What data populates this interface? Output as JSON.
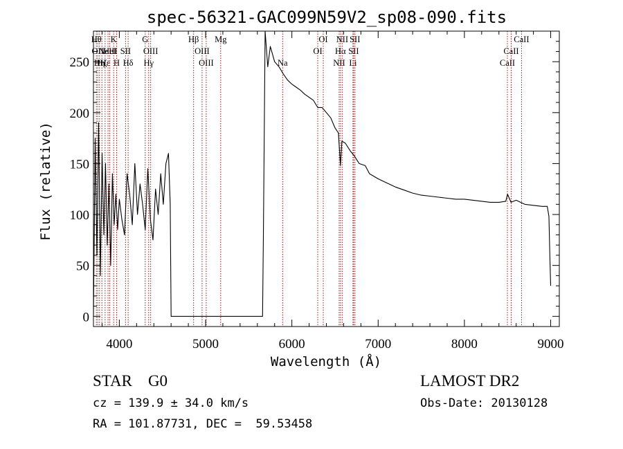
{
  "chart_data": {
    "type": "line",
    "title": "spec-56321-GAC099N59V2_sp08-090.fits",
    "xlabel": "Wavelength (Å)",
    "ylabel": "Flux (relative)",
    "xlim": [
      3700,
      9100
    ],
    "ylim": [
      -10,
      280
    ],
    "xticks": [
      4000,
      5000,
      6000,
      7000,
      8000,
      9000
    ],
    "yticks": [
      0,
      50,
      100,
      150,
      200,
      250
    ],
    "grid": false,
    "series": [
      {
        "color": "#000000",
        "x": [
          3700,
          3720,
          3740,
          3760,
          3780,
          3800,
          3820,
          3840,
          3860,
          3880,
          3900,
          3920,
          3940,
          3960,
          3980,
          4000,
          4030,
          4060,
          4090,
          4120,
          4150,
          4180,
          4210,
          4240,
          4270,
          4300,
          4330,
          4360,
          4390,
          4420,
          4450,
          4480,
          4510,
          4540,
          4570,
          4590,
          4600,
          5660,
          5670,
          5690,
          5720,
          5750,
          5800,
          5850,
          5900,
          5950,
          6000,
          6050,
          6100,
          6150,
          6200,
          6250,
          6300,
          6350,
          6400,
          6450,
          6500,
          6540,
          6563,
          6580,
          6620,
          6680,
          6720,
          6780,
          6850,
          6900,
          7000,
          7100,
          7200,
          7300,
          7400,
          7500,
          7600,
          7700,
          7800,
          7900,
          8000,
          8100,
          8200,
          8300,
          8400,
          8480,
          8500,
          8540,
          8600,
          8650,
          8700,
          8800,
          8900,
          8960,
          8980,
          8990,
          9000
        ],
        "y": [
          0,
          175,
          60,
          190,
          40,
          160,
          80,
          150,
          70,
          130,
          50,
          140,
          90,
          120,
          85,
          115,
          95,
          80,
          140,
          120,
          90,
          150,
          100,
          130,
          110,
          85,
          145,
          95,
          75,
          125,
          100,
          140,
          110,
          150,
          160,
          110,
          0,
          0,
          80,
          280,
          245,
          265,
          250,
          245,
          238,
          232,
          228,
          225,
          222,
          218,
          215,
          212,
          205,
          205,
          200,
          195,
          185,
          180,
          148,
          172,
          170,
          162,
          158,
          150,
          148,
          140,
          135,
          131,
          127,
          124,
          121,
          119,
          118,
          117,
          116,
          115,
          115,
          114,
          113,
          112,
          112,
          113,
          120,
          112,
          114,
          112,
          110,
          109,
          108,
          108,
          98,
          60,
          30
        ]
      }
    ],
    "lines": [
      {
        "x": 3734,
        "label": "Hθ",
        "row": 0
      },
      {
        "x": 3750,
        "label": "OII",
        "row": 1
      },
      {
        "x": 3770,
        "label": "Hη",
        "row": 2
      },
      {
        "x": 3798,
        "label": "Hζ",
        "row": 2
      },
      {
        "x": 3835,
        "label": "Hε",
        "row": 2
      },
      {
        "x": 3869,
        "label": "NeIII",
        "row": 1
      },
      {
        "x": 3889,
        "label": "HeI",
        "row": 1
      },
      {
        "x": 3934,
        "label": "K",
        "row": 0
      },
      {
        "x": 3969,
        "label": "H",
        "row": 2
      },
      {
        "x": 4072,
        "label": "SII",
        "row": 1
      },
      {
        "x": 4102,
        "label": "Hδ",
        "row": 2
      },
      {
        "x": 4300,
        "label": "G",
        "row": 0
      },
      {
        "x": 4340,
        "label": "Hγ",
        "row": 2
      },
      {
        "x": 4363,
        "label": "OIII",
        "row": 1
      },
      {
        "x": 4861,
        "label": "Hβ",
        "row": 0
      },
      {
        "x": 4959,
        "label": "OIII",
        "row": 1
      },
      {
        "x": 5007,
        "label": "OIII",
        "row": 2
      },
      {
        "x": 5175,
        "label": "Mg",
        "row": 0
      },
      {
        "x": 5893,
        "label": "Na",
        "row": 2
      },
      {
        "x": 6300,
        "label": "OI",
        "row": 1
      },
      {
        "x": 6364,
        "label": "OI",
        "row": 0
      },
      {
        "x": 6548,
        "label": "NII",
        "row": 2
      },
      {
        "x": 6563,
        "label": "Hα",
        "row": 1
      },
      {
        "x": 6583,
        "label": "NII",
        "row": 0
      },
      {
        "x": 6708,
        "label": "Li",
        "row": 2
      },
      {
        "x": 6716,
        "label": "SII",
        "row": 1
      },
      {
        "x": 6731,
        "label": "SII",
        "row": 0
      },
      {
        "x": 8498,
        "label": "CaII",
        "row": 2
      },
      {
        "x": 8542,
        "label": "CaII",
        "row": 1
      },
      {
        "x": 8662,
        "label": "CaII",
        "row": 0
      }
    ]
  },
  "footer": {
    "class_line": "STAR    G0",
    "survey": "LAMOST DR2",
    "cz": "cz = 139.9 ± 34.0 km/s",
    "obs_date": "Obs-Date: 20130128",
    "radec": "RA = 101.87731, DEC =  59.53458"
  }
}
